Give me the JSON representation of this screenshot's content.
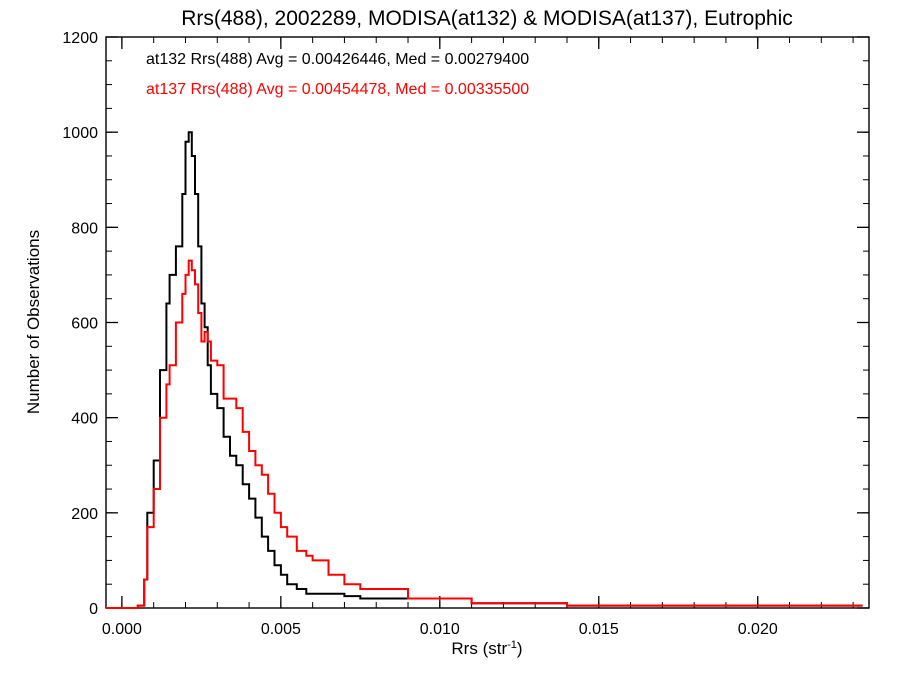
{
  "chart_data": {
    "type": "line",
    "title": "Rrs(488), 2002289, MODISA(at132) & MODISA(at137), Eutrophic",
    "xlabel_base": "Rrs (str",
    "xlabel_sup": "-1",
    "xlabel_close": ")",
    "ylabel": "Number of Observations",
    "xlim": [
      -0.0005,
      0.0235
    ],
    "ylim": [
      0,
      1200
    ],
    "xticks": [
      0.0,
      0.005,
      0.01,
      0.015,
      0.02
    ],
    "xtick_labels": [
      "0.000",
      "0.005",
      "0.010",
      "0.015",
      "0.020"
    ],
    "yticks": [
      0,
      200,
      400,
      600,
      800,
      1000,
      1200
    ],
    "ytick_labels": [
      "0",
      "200",
      "400",
      "600",
      "800",
      "1000",
      "1200"
    ],
    "grid": false,
    "legend_position": "top-left",
    "series": [
      {
        "name": "at132",
        "color": "#000000",
        "annotation": "at132 Rrs(488) Avg = 0.00426446, Med = 0.00279400",
        "x": [
          -0.0005,
          0.0,
          0.0003,
          0.0005,
          0.0007,
          0.0008,
          0.001,
          0.0012,
          0.0014,
          0.0015,
          0.0017,
          0.0019,
          0.002,
          0.0021,
          0.0022,
          0.0023,
          0.0024,
          0.0025,
          0.0026,
          0.0027,
          0.0028,
          0.003,
          0.0032,
          0.0034,
          0.0036,
          0.0038,
          0.004,
          0.0042,
          0.0044,
          0.0046,
          0.0048,
          0.005,
          0.0052,
          0.0055,
          0.0058,
          0.006,
          0.0065,
          0.007,
          0.0075,
          0.008,
          0.009,
          0.01,
          0.011,
          0.012,
          0.013,
          0.014,
          0.015,
          0.016,
          0.017,
          0.018,
          0.019,
          0.02,
          0.021,
          0.022,
          0.0233
        ],
        "y": [
          0,
          0,
          0,
          5,
          60,
          200,
          310,
          500,
          640,
          700,
          760,
          870,
          980,
          1000,
          950,
          870,
          760,
          640,
          590,
          510,
          450,
          420,
          360,
          320,
          300,
          260,
          230,
          190,
          150,
          120,
          90,
          70,
          50,
          40,
          30,
          30,
          30,
          25,
          20,
          20,
          20,
          20,
          10,
          10,
          10,
          5,
          5,
          5,
          5,
          5,
          5,
          5,
          5,
          5,
          5
        ]
      },
      {
        "name": "at137",
        "color": "#ff0000",
        "annotation": "at137 Rrs(488) Avg = 0.00454478, Med = 0.00335500",
        "x": [
          -0.0005,
          0.0,
          0.0003,
          0.0005,
          0.0007,
          0.0008,
          0.001,
          0.0012,
          0.0014,
          0.0015,
          0.0017,
          0.0019,
          0.002,
          0.0021,
          0.0022,
          0.0023,
          0.0024,
          0.0025,
          0.0026,
          0.0027,
          0.0028,
          0.003,
          0.0032,
          0.0034,
          0.0036,
          0.0038,
          0.004,
          0.0042,
          0.0044,
          0.0046,
          0.0048,
          0.005,
          0.0052,
          0.0055,
          0.0058,
          0.006,
          0.0065,
          0.007,
          0.0075,
          0.008,
          0.009,
          0.01,
          0.011,
          0.012,
          0.013,
          0.014,
          0.015,
          0.016,
          0.017,
          0.018,
          0.019,
          0.02,
          0.021,
          0.022,
          0.0233
        ],
        "y": [
          0,
          0,
          0,
          5,
          60,
          170,
          250,
          400,
          470,
          510,
          600,
          660,
          700,
          730,
          710,
          680,
          620,
          560,
          580,
          560,
          520,
          510,
          440,
          440,
          420,
          370,
          330,
          300,
          280,
          240,
          200,
          170,
          150,
          120,
          110,
          100,
          70,
          50,
          40,
          40,
          20,
          20,
          10,
          10,
          10,
          5,
          5,
          5,
          5,
          5,
          5,
          5,
          5,
          5,
          5
        ]
      }
    ]
  }
}
